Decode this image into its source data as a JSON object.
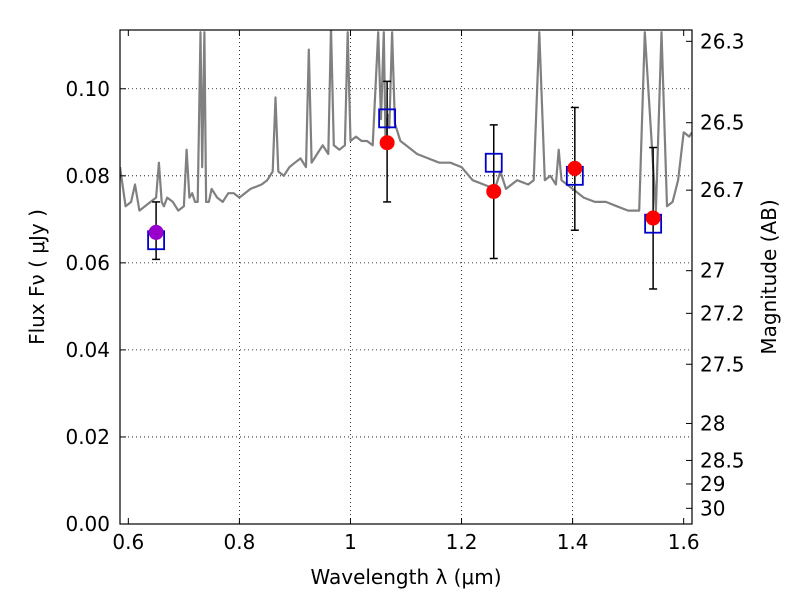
{
  "chart_data": {
    "type": "scatter",
    "xlabel": "Wavelength  λ (μm)",
    "ylabel": "Flux  Fν  ( μJy )",
    "y2label": "Magnitude (AB)",
    "xlim": [
      0.585,
      1.615
    ],
    "ylim": [
      0.0,
      0.1135
    ],
    "x_ticks": [
      0.6,
      0.8,
      1.0,
      1.2,
      1.4,
      1.6
    ],
    "x_tick_labels": [
      "0.6",
      "0.8",
      "1",
      "1.2",
      "1.4",
      "1.6"
    ],
    "y_ticks": [
      0.0,
      0.02,
      0.04,
      0.06,
      0.08,
      0.1
    ],
    "y_tick_labels": [
      "0.00",
      "0.02",
      "0.04",
      "0.06",
      "0.08",
      "0.10"
    ],
    "y2_ticks": [
      {
        "label": "26.3",
        "flux": 0.1109
      },
      {
        "label": "26.5",
        "flux": 0.0922
      },
      {
        "label": "26.7",
        "flux": 0.0767
      },
      {
        "label": "27",
        "flux": 0.0582
      },
      {
        "label": "27.2",
        "flux": 0.0484
      },
      {
        "label": "27.5",
        "flux": 0.0367
      },
      {
        "label": "28",
        "flux": 0.0231
      },
      {
        "label": "28.5",
        "flux": 0.0146
      },
      {
        "label": "29",
        "flux": 0.0092
      },
      {
        "label": "30",
        "flux": 0.0036
      }
    ],
    "grid": true,
    "colors": {
      "model": "#808080",
      "observed": "#ff0000",
      "observed_first": "#9900cc",
      "model_box": "#0000cc",
      "errorbar": "#000000"
    },
    "series": [
      {
        "type": "line",
        "x": [
          0.585,
          0.595,
          0.605,
          0.612,
          0.62,
          0.63,
          0.64,
          0.65,
          0.655,
          0.66,
          0.664,
          0.67,
          0.68,
          0.69,
          0.7,
          0.705,
          0.71,
          0.715,
          0.72,
          0.725,
          0.73,
          0.733,
          0.737,
          0.74,
          0.745,
          0.75,
          0.76,
          0.77,
          0.78,
          0.79,
          0.8,
          0.82,
          0.84,
          0.85,
          0.86,
          0.865,
          0.87,
          0.88,
          0.89,
          0.9,
          0.91,
          0.92,
          0.925,
          0.93,
          0.935,
          0.94,
          0.95,
          0.96,
          0.965,
          0.97,
          0.98,
          0.99,
          0.995,
          1.0,
          1.01,
          1.02,
          1.03,
          1.04,
          1.05,
          1.055,
          1.06,
          1.063,
          1.067,
          1.07,
          1.075,
          1.08,
          1.09,
          1.1,
          1.12,
          1.14,
          1.16,
          1.18,
          1.2,
          1.22,
          1.24,
          1.26,
          1.27,
          1.28,
          1.3,
          1.32,
          1.33,
          1.34,
          1.35,
          1.36,
          1.37,
          1.375,
          1.38,
          1.39,
          1.4,
          1.41,
          1.42,
          1.44,
          1.46,
          1.48,
          1.5,
          1.52,
          1.53,
          1.55,
          1.56,
          1.57,
          1.58,
          1.59,
          1.6,
          1.61,
          1.615
        ],
        "y": [
          0.082,
          0.073,
          0.074,
          0.078,
          0.072,
          0.073,
          0.074,
          0.075,
          0.083,
          0.074,
          0.073,
          0.075,
          0.074,
          0.072,
          0.073,
          0.086,
          0.075,
          0.076,
          0.074,
          0.074,
          0.113,
          0.082,
          0.113,
          0.074,
          0.074,
          0.077,
          0.075,
          0.074,
          0.076,
          0.076,
          0.075,
          0.077,
          0.078,
          0.079,
          0.081,
          0.098,
          0.081,
          0.08,
          0.082,
          0.083,
          0.084,
          0.082,
          0.109,
          0.083,
          0.084,
          0.085,
          0.087,
          0.085,
          0.114,
          0.087,
          0.086,
          0.087,
          0.113,
          0.088,
          0.089,
          0.088,
          0.088,
          0.087,
          0.113,
          0.093,
          0.113,
          0.088,
          0.094,
          0.091,
          0.113,
          0.092,
          0.088,
          0.087,
          0.085,
          0.084,
          0.083,
          0.083,
          0.082,
          0.079,
          0.078,
          0.077,
          0.081,
          0.077,
          0.079,
          0.078,
          0.079,
          0.113,
          0.079,
          0.08,
          0.078,
          0.086,
          0.079,
          0.078,
          0.077,
          0.076,
          0.075,
          0.074,
          0.074,
          0.073,
          0.072,
          0.072,
          0.113,
          0.072,
          0.113,
          0.073,
          0.074,
          0.079,
          0.09,
          0.089,
          0.09
        ]
      },
      {
        "type": "scatter",
        "marker": "square",
        "x": [
          0.65,
          1.066,
          1.258,
          1.404,
          1.545
        ],
        "y": [
          0.0652,
          0.0932,
          0.083,
          0.08,
          0.069
        ]
      },
      {
        "type": "scatter",
        "marker": "circle",
        "x": [
          0.65,
          1.066,
          1.258,
          1.404,
          1.545
        ],
        "y": [
          0.067,
          0.0876,
          0.0764,
          0.0817,
          0.0703
        ],
        "yerr_low": [
          0.0608,
          0.074,
          0.061,
          0.0675,
          0.054
        ],
        "yerr_high": [
          0.074,
          0.1017,
          0.0917,
          0.0957,
          0.0865
        ]
      }
    ]
  }
}
